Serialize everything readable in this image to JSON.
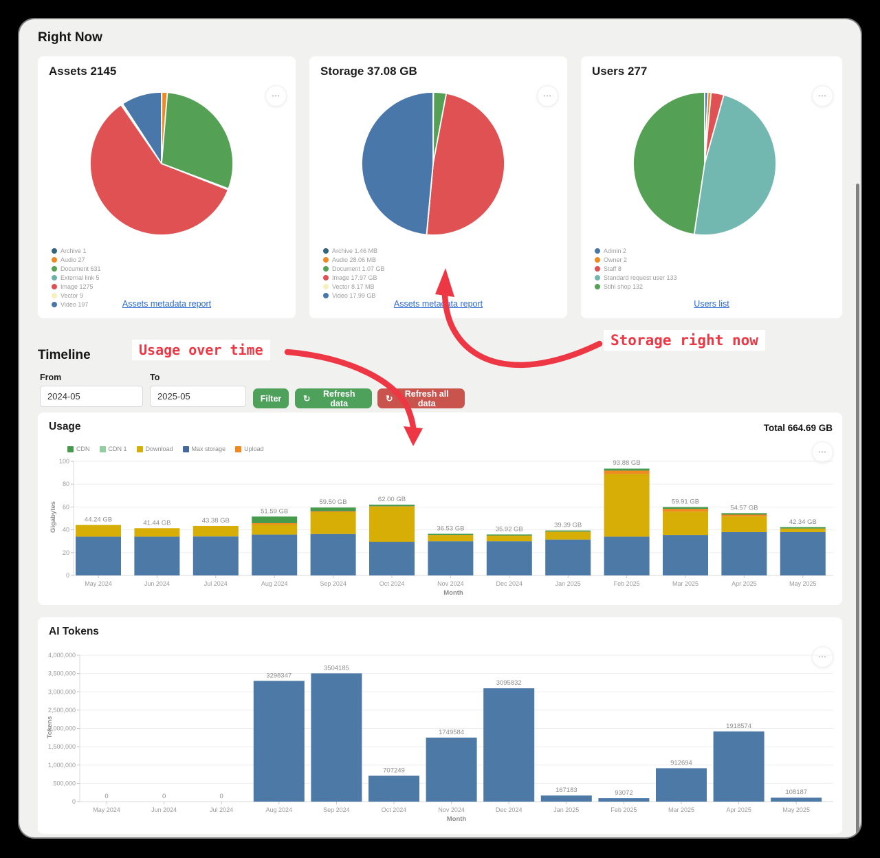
{
  "right_now": {
    "heading": "Right Now",
    "cards": [
      {
        "title": "Assets 2145",
        "link": "Assets metadata report"
      },
      {
        "title": "Storage 37.08 GB",
        "link": "Assets metadata report"
      },
      {
        "title": "Users 277",
        "link": "Users list"
      }
    ]
  },
  "timeline": {
    "heading": "Timeline",
    "from_label": "From",
    "from_value": "2024-05",
    "to_label": "To",
    "to_value": "2025-05",
    "filter_label": "Filter",
    "refresh_label": "Refresh data",
    "refresh_all_label": "Refresh all data"
  },
  "icons": {
    "ellipsis": "•••",
    "refresh": "↻"
  },
  "annotations": {
    "usage": {
      "text": "Usage over time"
    },
    "storage": {
      "text": "Storage right now"
    },
    "color": "#ee3744"
  },
  "chart_data": [
    {
      "id": "assets-pie",
      "type": "pie",
      "title": "Assets 2145",
      "slices": [
        {
          "legend": "Archive 1",
          "value": 1,
          "color": "#33657f"
        },
        {
          "legend": "Audio 27",
          "value": 27,
          "color": "#ee8a21"
        },
        {
          "legend": "Document 631",
          "value": 631,
          "color": "#54a054"
        },
        {
          "legend": "External link 5",
          "value": 5,
          "color": "#6cb0aa"
        },
        {
          "legend": "Image 1275",
          "value": 1275,
          "color": "#df5152"
        },
        {
          "legend": "Vector 9",
          "value": 9,
          "color": "#f6f0bd"
        },
        {
          "legend": "Video 197",
          "value": 197,
          "color": "#4a77aa"
        }
      ]
    },
    {
      "id": "storage-pie",
      "type": "pie",
      "title": "Storage 37.08 GB",
      "slices": [
        {
          "legend": "Archive 1.46 MB",
          "value": 0.0015,
          "color": "#33657f"
        },
        {
          "legend": "Audio 28.06 MB",
          "value": 0.0281,
          "color": "#ee8a21"
        },
        {
          "legend": "Document 1.07 GB",
          "value": 1.07,
          "color": "#54a054"
        },
        {
          "legend": "Image 17.97 GB",
          "value": 17.97,
          "color": "#df5152"
        },
        {
          "legend": "Vector 8.17 MB",
          "value": 0.0082,
          "color": "#f6f0bd"
        },
        {
          "legend": "Video 17.99 GB",
          "value": 17.99,
          "color": "#4a77aa"
        }
      ]
    },
    {
      "id": "users-pie",
      "type": "pie",
      "title": "Users 277",
      "slices": [
        {
          "legend": "Admin 2",
          "value": 2,
          "color": "#4a77aa"
        },
        {
          "legend": "Owner 2",
          "value": 2,
          "color": "#ee8a21"
        },
        {
          "legend": "Staff 8",
          "value": 8,
          "color": "#df5152"
        },
        {
          "legend": "Standard request user 133",
          "value": 133,
          "color": "#72b8b0"
        },
        {
          "legend": "Stihl shop 132",
          "value": 132,
          "color": "#54a054"
        }
      ]
    },
    {
      "id": "usage",
      "type": "bar",
      "stacked": true,
      "title": "Usage",
      "total_label": "Total 664.69 GB",
      "xlabel": "Month",
      "ylabel": "Gigabytes",
      "ylim": [
        0,
        100
      ],
      "yticks": [
        0,
        20,
        40,
        60,
        80,
        100
      ],
      "categories": [
        "May 2024",
        "Jun 2024",
        "Jul 2024",
        "Aug 2024",
        "Sep 2024",
        "Oct 2024",
        "Nov 2024",
        "Dec 2024",
        "Jan 2025",
        "Feb 2025",
        "Mar 2025",
        "Apr 2025",
        "May 2025"
      ],
      "bar_labels": [
        "44.24 GB",
        "41.44 GB",
        "43.38 GB",
        "51.59 GB",
        "59.50 GB",
        "62.00 GB",
        "36.53 GB",
        "35.92 GB",
        "39.39 GB",
        "93.88 GB",
        "59.91 GB",
        "54.57 GB",
        "42.34 GB"
      ],
      "legend": [
        {
          "label": "CDN",
          "color": "#459a4b"
        },
        {
          "label": "CDN 1",
          "color": "#92cfa0"
        },
        {
          "label": "Download",
          "color": "#d6ae05"
        },
        {
          "label": "Max storage",
          "color": "#44699d"
        },
        {
          "label": "Upload",
          "color": "#ee8a21"
        }
      ],
      "series": [
        {
          "name": "Max storage",
          "color": "#4d79a7",
          "values": [
            34,
            34,
            34.2,
            35.8,
            36.3,
            29.5,
            30,
            30,
            31.5,
            34,
            35.5,
            38,
            38
          ]
        },
        {
          "name": "Download",
          "color": "#d6ae05",
          "values": [
            10.2,
            7.4,
            9.2,
            8.8,
            19.2,
            30.8,
            5.3,
            4.7,
            6.7,
            54.9,
            20.4,
            13.6,
            3.0
          ]
        },
        {
          "name": "Upload",
          "color": "#ee8a21",
          "values": [
            0,
            0,
            0,
            1.2,
            0.8,
            0.3,
            0.2,
            0.2,
            0.2,
            3.0,
            2.5,
            1.7,
            0.1
          ]
        },
        {
          "name": "CDN",
          "color": "#459a4b",
          "values": [
            0,
            0,
            0,
            5.8,
            3.2,
            1.4,
            1.0,
            1.0,
            1.0,
            1.5,
            1.5,
            1.3,
            1.2
          ]
        },
        {
          "name": "CDN 1",
          "color": "#92cfa0",
          "values": [
            0,
            0,
            0,
            0,
            0,
            0,
            0,
            0,
            0,
            0.5,
            0,
            0,
            0
          ]
        }
      ]
    },
    {
      "id": "tokens",
      "type": "bar",
      "title": "AI Tokens",
      "xlabel": "Month",
      "ylabel": "Tokens",
      "ylim": [
        0,
        4000000
      ],
      "ytick_labels": [
        "0",
        "500,000",
        "1,000,000",
        "1,500,000",
        "2,000,000",
        "2,500,000",
        "3,000,000",
        "3,500,000",
        "4,000,000"
      ],
      "categories": [
        "May 2024",
        "Jun 2024",
        "Jul 2024",
        "Aug 2024",
        "Sep 2024",
        "Oct 2024",
        "Nov 2024",
        "Dec 2024",
        "Jan 2025",
        "Feb 2025",
        "Mar 2025",
        "Apr 2025",
        "May 2025"
      ],
      "values": [
        0,
        0,
        0,
        3298347,
        3504185,
        707249,
        1749584,
        3095832,
        167183,
        93072,
        912694,
        1918574,
        108187
      ],
      "bar_labels": [
        "0",
        "0",
        "0",
        "3298347",
        "3504185",
        "707249",
        "1749584",
        "3095832",
        "167183",
        "93072",
        "912694",
        "1918574",
        "108187"
      ],
      "bar_color": "#4d79a7"
    }
  ]
}
